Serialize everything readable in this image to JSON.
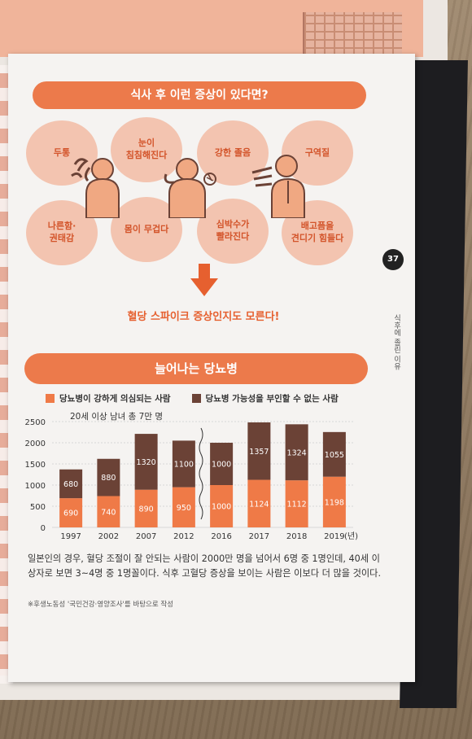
{
  "banner_top": "식사 후 이런 증상이 있다면?",
  "symptoms": [
    "두통",
    "눈이\n침침해진다",
    "강한 졸음",
    "구역질",
    "나른함·\n권태감",
    "몸이 무겁다",
    "심박수가\n빨라진다",
    "배고픔을\n견디기 힘들다"
  ],
  "subtitle": "혈당 스파이크 증상인지도 모른다!",
  "page_number": "37",
  "side_text": "식후에 졸린 이유",
  "banner_chart": "늘어나는 당뇨병",
  "colors": {
    "accent": "#ec7a4b",
    "bar_lower": "#ef7a47",
    "bar_upper": "#6b4236",
    "circle": "#f3c4b0"
  },
  "chart_data": {
    "type": "bar",
    "stacked": true,
    "note": "20세 이상 남녀 총 7만 명",
    "categories": [
      "1997",
      "2002",
      "2007",
      "2012",
      "2016",
      "2017",
      "2018",
      "2019"
    ],
    "x_unit": "(년)",
    "series": [
      {
        "name": "당뇨병이 강하게 의심되는 사람",
        "values": [
          690,
          740,
          890,
          950,
          1000,
          1124,
          1112,
          1198
        ]
      },
      {
        "name": "당뇨병 가능성을 부인할 수 없는 사람",
        "values": [
          680,
          880,
          1320,
          1100,
          1000,
          1357,
          1324,
          1055
        ]
      }
    ],
    "y_ticks": [
      "0",
      "500",
      "1000",
      "1500",
      "2000",
      "2500"
    ],
    "ylim": [
      0,
      2500
    ],
    "grid": true,
    "legend": "top"
  },
  "body_text": "일본인의 경우, 혈당 조절이 잘 안되는 사람이 2000만 명을 넘어서 6명 중 1명인데, 40세 이상자로 보면 3~4명 중 1명꼴이다. 식후 고혈당 증상을 보이는 사람은 이보다 더 많을 것이다.",
  "source": "※후생노동성 '국민건강·영양조사'를 바탕으로 작성"
}
